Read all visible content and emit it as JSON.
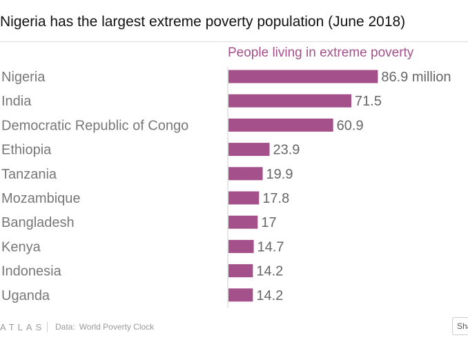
{
  "title": "Nigeria has the largest extreme poverty population (June 2018)",
  "footer": {
    "logo": "ATLAS",
    "source_label": "Data:",
    "source_value": "World Poverty Clock",
    "share_label": "Share"
  },
  "colors": {
    "bar": "#a4508b",
    "header": "#a4508b",
    "category_text": "#777777",
    "value_text": "#666666"
  },
  "chart_data": {
    "type": "bar",
    "orientation": "horizontal",
    "title": "Nigeria has the largest extreme poverty population (June 2018)",
    "series": [
      {
        "name": "People living in extreme poverty",
        "values": [
          86.9,
          71.5,
          60.9,
          23.9,
          19.9,
          17.8,
          17,
          14.7,
          14.2,
          14.2
        ]
      }
    ],
    "categories": [
      "Nigeria",
      "India",
      "Democratic Republic of Congo",
      "Ethiopia",
      "Tanzania",
      "Mozambique",
      "Bangladesh",
      "Kenya",
      "Indonesia",
      "Uganda"
    ],
    "value_labels": [
      "86.9 million",
      "71.5",
      "60.9",
      "23.9",
      "19.9",
      "17.8",
      "17",
      "14.7",
      "14.2",
      "14.2"
    ],
    "xlim": [
      0,
      100
    ],
    "grid": false,
    "legend": "top"
  }
}
